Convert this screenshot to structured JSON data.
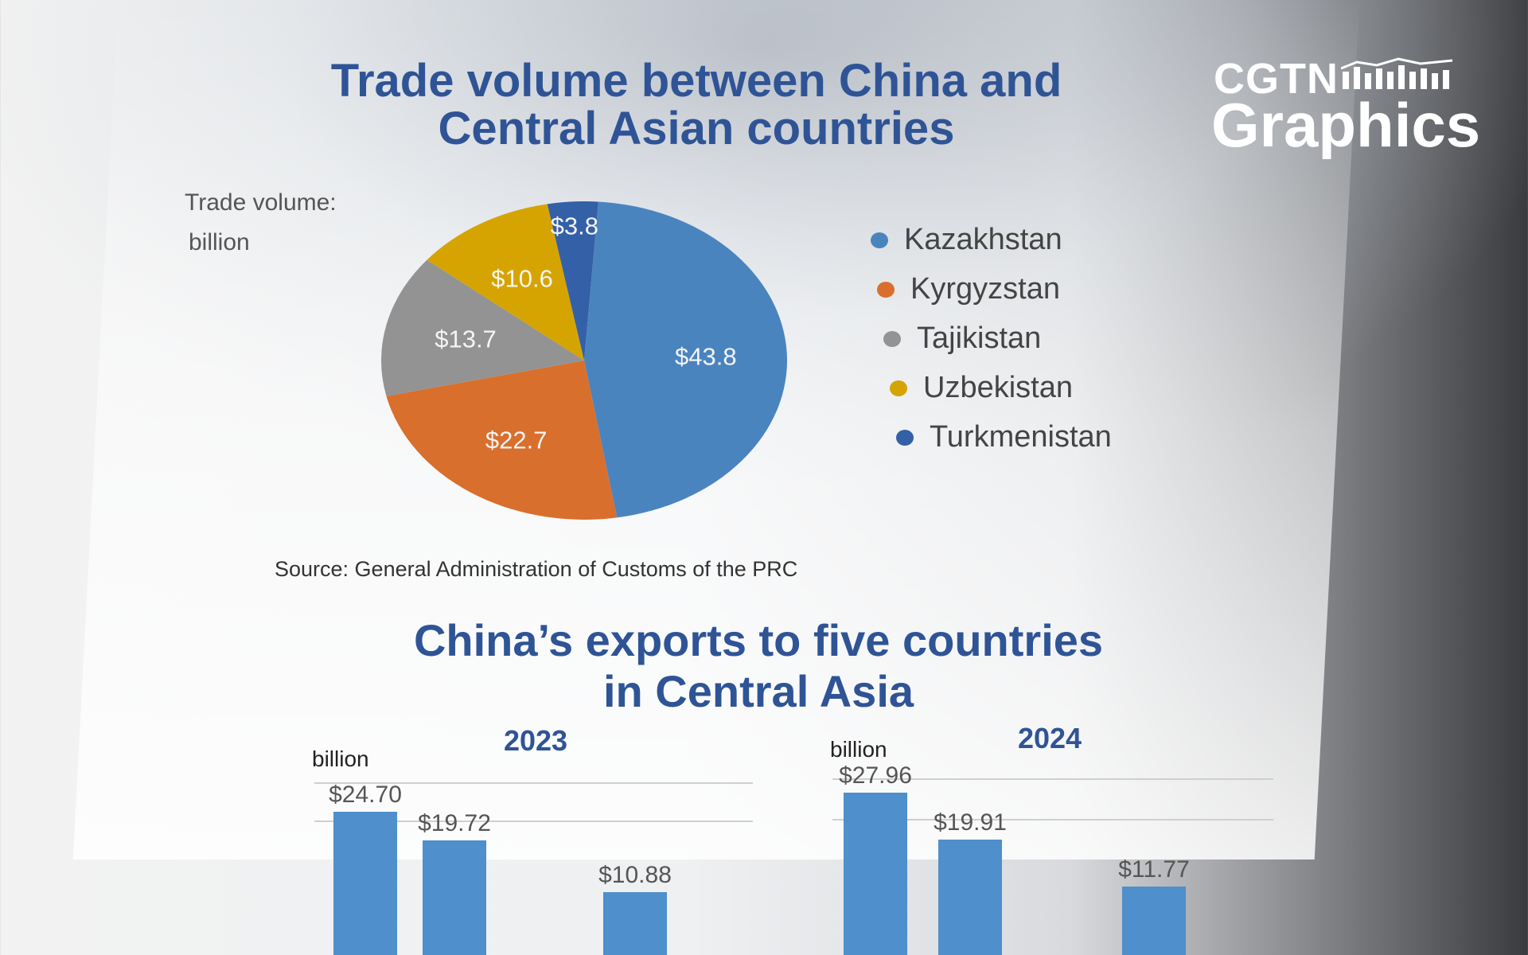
{
  "logo": {
    "line1": "CGTN",
    "line2": "Graphics"
  },
  "chart_data": [
    {
      "type": "pie",
      "title": "Trade volume between China and Central Asian countries",
      "unit_label_1": "Trade volume:",
      "unit_label_2": "billion",
      "categories": [
        "Kazakhstan",
        "Kyrgyzstan",
        "Tajikistan",
        "Uzbekistan",
        "Turkmenistan"
      ],
      "values": [
        43.8,
        22.7,
        13.7,
        10.6,
        3.8
      ],
      "labels": [
        "$43.8",
        "$22.7",
        "$13.7",
        "$10.6",
        "$3.8"
      ],
      "colors": [
        "#4a84bf",
        "#d96f2c",
        "#939393",
        "#d6a400",
        "#3460a8"
      ],
      "legend": "right",
      "source": "Source: General Administration of Customs of the PRC"
    },
    {
      "type": "bar",
      "title": "China’s exports to five countries in Central Asia",
      "subtitle": "2023",
      "ylabel": "billion",
      "values": [
        24.7,
        19.72,
        10.88
      ],
      "labels": [
        "$24.70",
        "$19.72",
        "$10.88"
      ],
      "grid": true
    },
    {
      "type": "bar",
      "subtitle": "2024",
      "ylabel": "billion",
      "values": [
        27.96,
        19.91,
        11.77
      ],
      "labels": [
        "$27.96",
        "$19.91",
        "$11.77"
      ],
      "grid": true
    }
  ],
  "titles": {
    "pie_line1": "Trade volume between China and",
    "pie_line2": "Central Asian countries",
    "bar_line1": "China’s exports to five countries",
    "bar_line2": "in Central Asia"
  }
}
